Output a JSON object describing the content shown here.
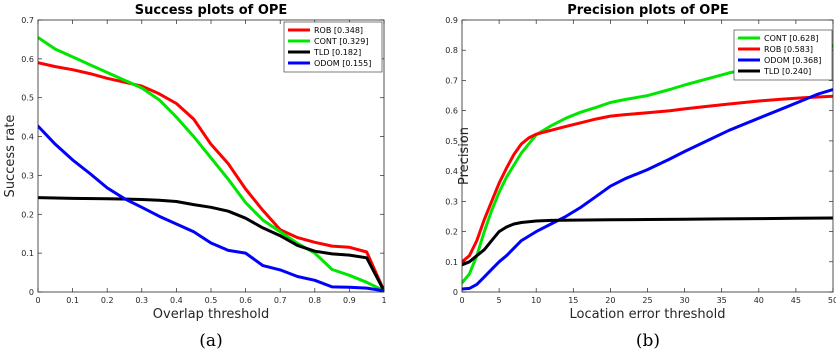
{
  "chart_data": [
    {
      "type": "line",
      "title": "Success plots of OPE",
      "xlabel": "Overlap threshold",
      "ylabel": "Success rate",
      "caption": "(a)",
      "xlim": [
        0,
        1
      ],
      "ylim": [
        0,
        0.7
      ],
      "xticks": [
        "0",
        "0.1",
        "0.2",
        "0.3",
        "0.4",
        "0.5",
        "0.6",
        "0.7",
        "0.8",
        "0.9",
        "1"
      ],
      "yticks": [
        "0",
        "0.1",
        "0.2",
        "0.3",
        "0.4",
        "0.5",
        "0.6",
        "0.7"
      ],
      "legend_position": "top-right",
      "grid": false,
      "series": [
        {
          "name": "ROB [0.348]",
          "color": "#ff0000",
          "points": [
            [
              0,
              0.59
            ],
            [
              0.05,
              0.58
            ],
            [
              0.1,
              0.572
            ],
            [
              0.15,
              0.562
            ],
            [
              0.2,
              0.55
            ],
            [
              0.25,
              0.54
            ],
            [
              0.3,
              0.53
            ],
            [
              0.35,
              0.51
            ],
            [
              0.4,
              0.485
            ],
            [
              0.45,
              0.445
            ],
            [
              0.5,
              0.38
            ],
            [
              0.55,
              0.33
            ],
            [
              0.6,
              0.265
            ],
            [
              0.65,
              0.21
            ],
            [
              0.7,
              0.16
            ],
            [
              0.75,
              0.14
            ],
            [
              0.8,
              0.128
            ],
            [
              0.85,
              0.118
            ],
            [
              0.9,
              0.115
            ],
            [
              0.95,
              0.103
            ],
            [
              1.0,
              0.003
            ]
          ]
        },
        {
          "name": "CONT [0.329]",
          "color": "#00e600",
          "points": [
            [
              0,
              0.655
            ],
            [
              0.05,
              0.625
            ],
            [
              0.1,
              0.605
            ],
            [
              0.15,
              0.585
            ],
            [
              0.2,
              0.565
            ],
            [
              0.25,
              0.545
            ],
            [
              0.3,
              0.525
            ],
            [
              0.35,
              0.495
            ],
            [
              0.4,
              0.45
            ],
            [
              0.45,
              0.4
            ],
            [
              0.5,
              0.345
            ],
            [
              0.55,
              0.29
            ],
            [
              0.6,
              0.23
            ],
            [
              0.65,
              0.185
            ],
            [
              0.7,
              0.155
            ],
            [
              0.75,
              0.125
            ],
            [
              0.8,
              0.1
            ],
            [
              0.85,
              0.058
            ],
            [
              0.9,
              0.043
            ],
            [
              0.95,
              0.025
            ],
            [
              1.0,
              0.003
            ]
          ]
        },
        {
          "name": "TLD [0.182]",
          "color": "#000000",
          "points": [
            [
              0,
              0.243
            ],
            [
              0.1,
              0.241
            ],
            [
              0.2,
              0.24
            ],
            [
              0.3,
              0.238
            ],
            [
              0.35,
              0.236
            ],
            [
              0.4,
              0.233
            ],
            [
              0.45,
              0.225
            ],
            [
              0.5,
              0.218
            ],
            [
              0.55,
              0.208
            ],
            [
              0.6,
              0.19
            ],
            [
              0.65,
              0.165
            ],
            [
              0.7,
              0.145
            ],
            [
              0.75,
              0.12
            ],
            [
              0.8,
              0.105
            ],
            [
              0.85,
              0.098
            ],
            [
              0.9,
              0.095
            ],
            [
              0.95,
              0.088
            ],
            [
              1.0,
              0.003
            ]
          ]
        },
        {
          "name": "ODOM [0.155]",
          "color": "#0000ff",
          "points": [
            [
              0,
              0.427
            ],
            [
              0.05,
              0.38
            ],
            [
              0.1,
              0.34
            ],
            [
              0.15,
              0.305
            ],
            [
              0.2,
              0.268
            ],
            [
              0.25,
              0.24
            ],
            [
              0.3,
              0.218
            ],
            [
              0.35,
              0.195
            ],
            [
              0.4,
              0.175
            ],
            [
              0.45,
              0.155
            ],
            [
              0.5,
              0.126
            ],
            [
              0.55,
              0.107
            ],
            [
              0.6,
              0.1
            ],
            [
              0.65,
              0.068
            ],
            [
              0.7,
              0.057
            ],
            [
              0.75,
              0.04
            ],
            [
              0.8,
              0.03
            ],
            [
              0.85,
              0.013
            ],
            [
              0.9,
              0.012
            ],
            [
              0.95,
              0.01
            ],
            [
              1.0,
              0.003
            ]
          ]
        }
      ]
    },
    {
      "type": "line",
      "title": "Precision plots of OPE",
      "xlabel": "Location error threshold",
      "ylabel": "Precision",
      "caption": "(b)",
      "xlim": [
        0,
        50
      ],
      "ylim": [
        0,
        0.9
      ],
      "xticks": [
        "0",
        "5",
        "10",
        "15",
        "20",
        "25",
        "30",
        "35",
        "40",
        "45",
        "50"
      ],
      "yticks": [
        "0",
        "0.1",
        "0.2",
        "0.3",
        "0.4",
        "0.5",
        "0.6",
        "0.7",
        "0.8",
        "0.9"
      ],
      "legend_position": "top-right",
      "grid": false,
      "series": [
        {
          "name": "CONT [0.628]",
          "color": "#00e600",
          "points": [
            [
              0,
              0.03
            ],
            [
              1,
              0.06
            ],
            [
              2,
              0.12
            ],
            [
              3,
              0.2
            ],
            [
              4,
              0.27
            ],
            [
              5,
              0.33
            ],
            [
              6,
              0.38
            ],
            [
              7,
              0.42
            ],
            [
              8,
              0.46
            ],
            [
              9,
              0.49
            ],
            [
              10,
              0.52
            ],
            [
              12,
              0.55
            ],
            [
              14,
              0.575
            ],
            [
              16,
              0.595
            ],
            [
              18,
              0.61
            ],
            [
              20,
              0.627
            ],
            [
              22,
              0.637
            ],
            [
              25,
              0.65
            ],
            [
              28,
              0.67
            ],
            [
              30,
              0.685
            ],
            [
              33,
              0.705
            ],
            [
              36,
              0.725
            ],
            [
              40,
              0.745
            ],
            [
              43,
              0.765
            ],
            [
              46,
              0.785
            ],
            [
              48,
              0.8
            ],
            [
              50,
              0.815
            ]
          ]
        },
        {
          "name": "ROB [0.583]",
          "color": "#ff0000",
          "points": [
            [
              0,
              0.1
            ],
            [
              1,
              0.12
            ],
            [
              2,
              0.17
            ],
            [
              3,
              0.24
            ],
            [
              4,
              0.3
            ],
            [
              5,
              0.36
            ],
            [
              6,
              0.41
            ],
            [
              7,
              0.455
            ],
            [
              8,
              0.49
            ],
            [
              9,
              0.51
            ],
            [
              10,
              0.522
            ],
            [
              12,
              0.535
            ],
            [
              14,
              0.548
            ],
            [
              16,
              0.56
            ],
            [
              18,
              0.572
            ],
            [
              20,
              0.582
            ],
            [
              22,
              0.587
            ],
            [
              25,
              0.593
            ],
            [
              28,
              0.6
            ],
            [
              30,
              0.606
            ],
            [
              33,
              0.614
            ],
            [
              36,
              0.622
            ],
            [
              40,
              0.632
            ],
            [
              43,
              0.638
            ],
            [
              46,
              0.643
            ],
            [
              50,
              0.648
            ]
          ]
        },
        {
          "name": "ODOM [0.368]",
          "color": "#0000ff",
          "points": [
            [
              0,
              0.01
            ],
            [
              1,
              0.012
            ],
            [
              2,
              0.025
            ],
            [
              3,
              0.05
            ],
            [
              4,
              0.075
            ],
            [
              5,
              0.1
            ],
            [
              6,
              0.12
            ],
            [
              7,
              0.145
            ],
            [
              8,
              0.17
            ],
            [
              10,
              0.2
            ],
            [
              12,
              0.225
            ],
            [
              14,
              0.25
            ],
            [
              16,
              0.28
            ],
            [
              18,
              0.315
            ],
            [
              20,
              0.35
            ],
            [
              22,
              0.375
            ],
            [
              25,
              0.405
            ],
            [
              28,
              0.44
            ],
            [
              30,
              0.465
            ],
            [
              33,
              0.5
            ],
            [
              36,
              0.535
            ],
            [
              40,
              0.575
            ],
            [
              43,
              0.605
            ],
            [
              46,
              0.635
            ],
            [
              48,
              0.655
            ],
            [
              50,
              0.67
            ]
          ]
        },
        {
          "name": "TLD [0.240]",
          "color": "#000000",
          "points": [
            [
              0,
              0.09
            ],
            [
              1,
              0.1
            ],
            [
              2,
              0.12
            ],
            [
              3,
              0.14
            ],
            [
              4,
              0.17
            ],
            [
              5,
              0.2
            ],
            [
              6,
              0.215
            ],
            [
              7,
              0.225
            ],
            [
              8,
              0.23
            ],
            [
              10,
              0.235
            ],
            [
              12,
              0.237
            ],
            [
              15,
              0.238
            ],
            [
              20,
              0.239
            ],
            [
              25,
              0.24
            ],
            [
              30,
              0.241
            ],
            [
              35,
              0.242
            ],
            [
              40,
              0.243
            ],
            [
              45,
              0.244
            ],
            [
              50,
              0.245
            ]
          ]
        }
      ]
    }
  ]
}
